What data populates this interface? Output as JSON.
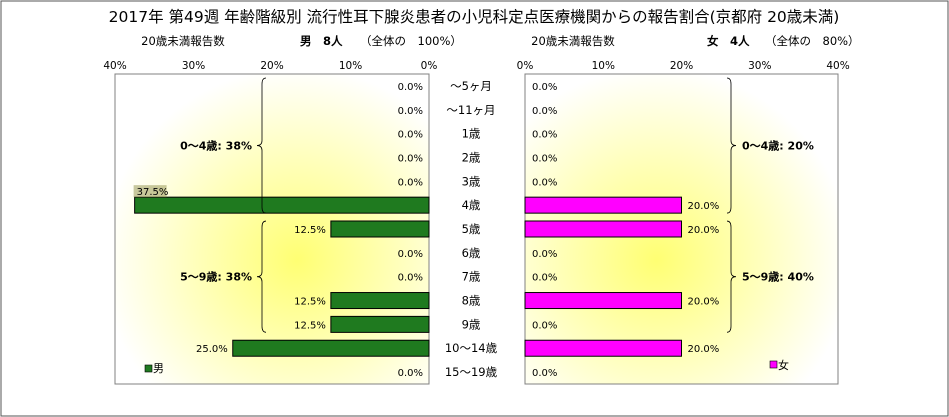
{
  "chart_data": {
    "type": "bar",
    "orientation": "horizontal-population-pyramid",
    "title": "2017年 第49週 年齢階級別 流行性耳下腺炎患者の小児科定点医療機関からの報告割合(京都府 20歳未満)",
    "categories": [
      "～5ヶ月",
      "～11ヶ月",
      "1歳",
      "2歳",
      "3歳",
      "4歳",
      "5歳",
      "6歳",
      "7歳",
      "8歳",
      "9歳",
      "10～14歳",
      "15～19歳"
    ],
    "series": [
      {
        "name": "男",
        "color": "#1f7a1f",
        "values": [
          0.0,
          0.0,
          0.0,
          0.0,
          0.0,
          37.5,
          12.5,
          0.0,
          0.0,
          12.5,
          12.5,
          25.0,
          0.0
        ],
        "labels": [
          "0.0%",
          "0.0%",
          "0.0%",
          "0.0%",
          "0.0%",
          "37.5%",
          "12.5%",
          "0.0%",
          "0.0%",
          "12.5%",
          "12.5%",
          "25.0%",
          "0.0%"
        ],
        "header": {
          "caption": "20歳未満報告数",
          "label": "男　8人",
          "note": "（全体の　100%）"
        },
        "groups": [
          {
            "label": "0～4歳: 38%",
            "from": 0,
            "to": 5
          },
          {
            "label": "5～9歳: 38%",
            "from": 6,
            "to": 10
          }
        ]
      },
      {
        "name": "女",
        "color": "#ff00ff",
        "values": [
          0.0,
          0.0,
          0.0,
          0.0,
          0.0,
          20.0,
          20.0,
          0.0,
          0.0,
          20.0,
          0.0,
          20.0,
          0.0
        ],
        "labels": [
          "0.0%",
          "0.0%",
          "0.0%",
          "0.0%",
          "0.0%",
          "20.0%",
          "20.0%",
          "0.0%",
          "0.0%",
          "20.0%",
          "0.0%",
          "20.0%",
          "0.0%"
        ],
        "header": {
          "caption": "20歳未満報告数",
          "label": "女　4人",
          "note": "（全体の　80%）"
        },
        "groups": [
          {
            "label": "0～4歳: 20%",
            "from": 0,
            "to": 5
          },
          {
            "label": "5～9歳: 40%",
            "from": 6,
            "to": 10
          }
        ]
      }
    ],
    "xlim": [
      0,
      40
    ],
    "xticks": [
      "0%",
      "10%",
      "20%",
      "30%",
      "40%"
    ],
    "legend_placement": "bottom-left (男), bottom-right (女)",
    "grid": false,
    "background": "radial yellow gradient"
  }
}
